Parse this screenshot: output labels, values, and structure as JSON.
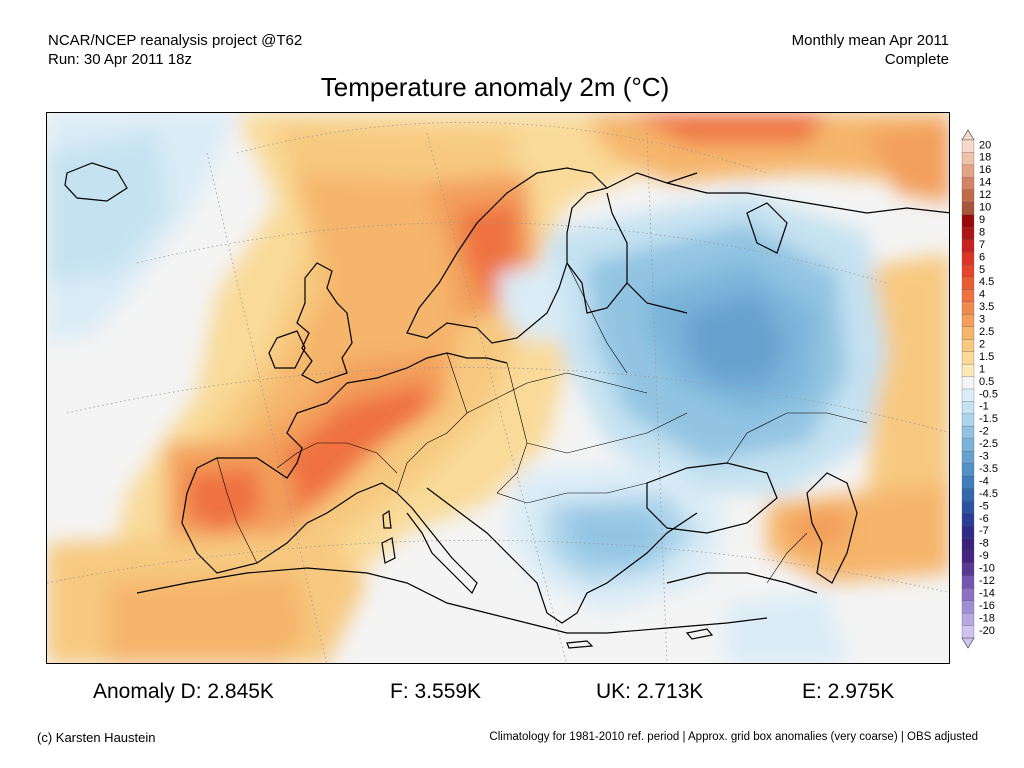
{
  "header": {
    "project": "NCAR/NCEP reanalysis project @T62",
    "run": "Run: 30 Apr 2011 18z",
    "period": "Monthly mean Apr 2011",
    "status": "Complete"
  },
  "title": "Temperature anomaly 2m (°C)",
  "legend": {
    "labels": [
      "20",
      "18",
      "16",
      "14",
      "12",
      "10",
      "9",
      "8",
      "7",
      "6",
      "5",
      "4.5",
      "4",
      "3.5",
      "3",
      "2.5",
      "2",
      "1.5",
      "1",
      "0.5",
      "-0.5",
      "-1",
      "-1.5",
      "-2",
      "-2.5",
      "-3",
      "-3.5",
      "-4",
      "-4.5",
      "-5",
      "-6",
      "-7",
      "-8",
      "-9",
      "-10",
      "-12",
      "-14",
      "-16",
      "-18",
      "-20"
    ],
    "colors": [
      "#f6d9c8",
      "#efc3a8",
      "#e4a486",
      "#d48566",
      "#c06a4b",
      "#a9553a",
      "#9a0a0a",
      "#b01515",
      "#c72121",
      "#dc3526",
      "#e5452c",
      "#ea5d33",
      "#ef7240",
      "#f18a4e",
      "#f39f5b",
      "#f5b56c",
      "#f7c980",
      "#f9da98",
      "#fbe9b8",
      "#f4f4f4",
      "#daecf6",
      "#c5e2f1",
      "#acd4eb",
      "#92c4e2",
      "#7bb4da",
      "#66a2cf",
      "#5491c4",
      "#417dba",
      "#3468ad",
      "#2a53a0",
      "#2b3d93",
      "#2f2c86",
      "#392178",
      "#48267f",
      "#5b3a96",
      "#7356ad",
      "#8b72c2",
      "#a28ed3",
      "#b8a9e2",
      "#cfc4ef"
    ],
    "max_arrow": "#f6d9c8",
    "min_arrow": "#cfc4ef"
  },
  "stats": {
    "anomaly_d": "Anomaly D: 2.845K",
    "f": "F: 3.559K",
    "uk": "UK: 2.713K",
    "e": "E: 2.975K"
  },
  "footer": {
    "credit": "(c) Karsten Haustein",
    "note": "Climatology for 1981-2010 ref. period | Approx. grid box anomalies (very coarse) | OBS adjusted"
  }
}
